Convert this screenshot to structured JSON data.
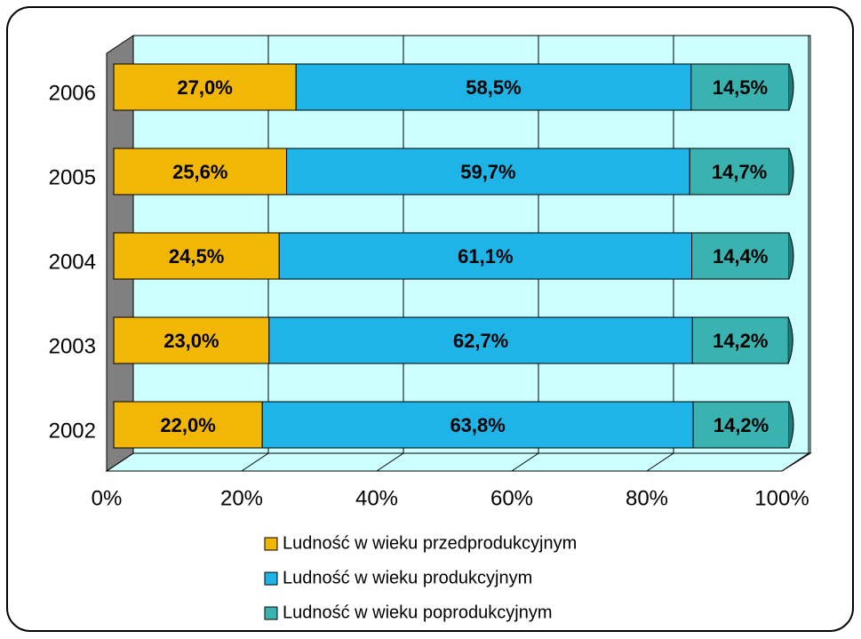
{
  "chart_data": {
    "type": "stacked_bar_horizontal",
    "categories": [
      "2006",
      "2005",
      "2004",
      "2003",
      "2002"
    ],
    "series": [
      {
        "name": "Ludność w wieku przedprodukcyjnym",
        "color": "#f2b705",
        "values": [
          27.0,
          25.6,
          24.5,
          23.0,
          22.0
        ],
        "value_labels": [
          "27,0%",
          "25,6%",
          "24,5%",
          "23,0%",
          "22,0%"
        ]
      },
      {
        "name": "Ludność w wieku produkcyjnym",
        "color": "#1fb4e8",
        "values": [
          58.5,
          59.7,
          61.1,
          62.7,
          63.8
        ],
        "value_labels": [
          "58,5%",
          "59,7%",
          "61,1%",
          "62,7%",
          "63,8%"
        ]
      },
      {
        "name": "Ludność w wieku poprodukcyjnym",
        "color": "#3ab3b0",
        "values": [
          14.5,
          14.7,
          14.4,
          14.2,
          14.2
        ],
        "value_labels": [
          "14,5%",
          "14,7%",
          "14,4%",
          "14,2%",
          "14,2%"
        ]
      }
    ],
    "xlim": [
      0,
      100
    ],
    "xticks": [
      {
        "value": 0,
        "label": "0%"
      },
      {
        "value": 20,
        "label": "20%"
      },
      {
        "value": 40,
        "label": "40%"
      },
      {
        "value": 60,
        "label": "60%"
      },
      {
        "value": 80,
        "label": "80%"
      },
      {
        "value": 100,
        "label": "100%"
      }
    ],
    "grid": true,
    "legend": "bottom"
  }
}
